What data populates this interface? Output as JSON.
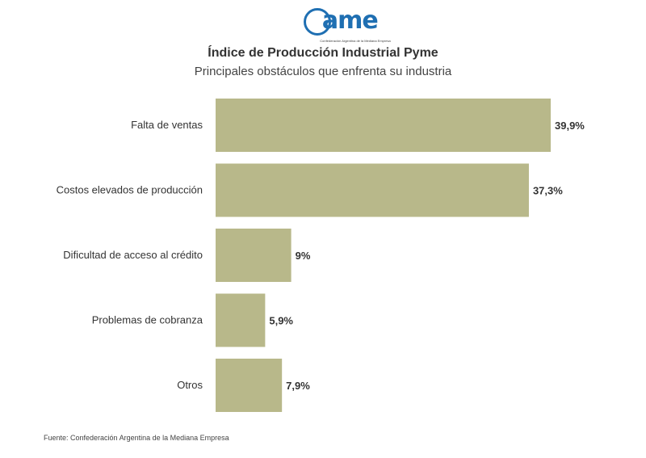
{
  "logo": {
    "text": "ame",
    "subtitle": "Confederación Argentina de la Mediana Empresa"
  },
  "colors": {
    "bar": "#b8b88a",
    "text": "#333333",
    "logo": "#1f6fb2"
  },
  "chart_data": {
    "type": "bar",
    "orientation": "horizontal",
    "title": "Índice de Producción Industrial Pyme",
    "subtitle": "Principales obstáculos que enfrenta su industria",
    "categories": [
      "Falta de ventas",
      "Costos elevados de producción",
      "Dificultad de acceso al crédito",
      "Problemas de cobranza",
      "Otros"
    ],
    "values": [
      39.9,
      37.3,
      9,
      5.9,
      7.9
    ],
    "value_labels": [
      "39,9%",
      "37,3%",
      "9%",
      "5,9%",
      "7,9%"
    ],
    "xlim": [
      0,
      40
    ],
    "grid": false,
    "legend": "none"
  },
  "footer": {
    "source": "Fuente: Confederación Argentina de la Mediana Empresa"
  }
}
